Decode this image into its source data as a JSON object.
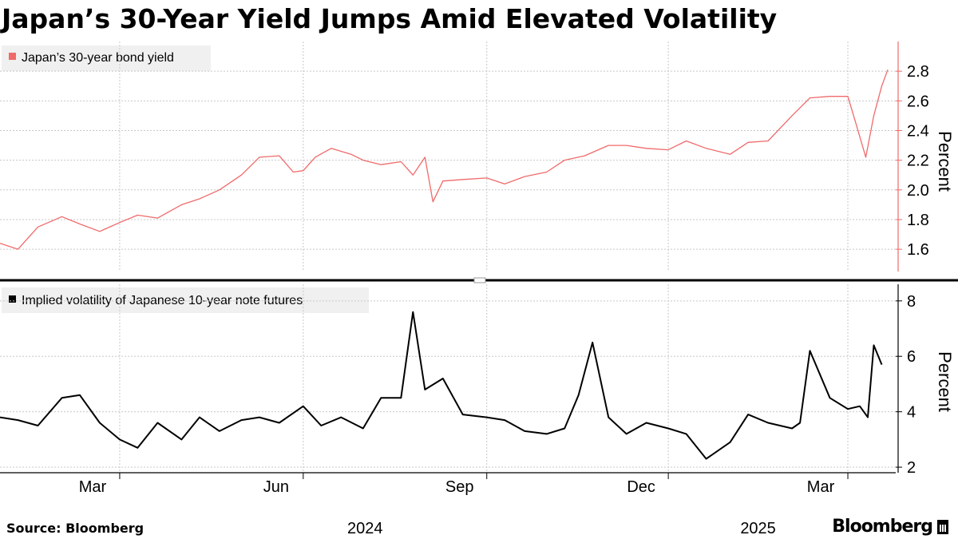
{
  "title": "Japan’s 30-Year Yield Jumps Amid Elevated Volatility",
  "source": "Source: Bloomberg",
  "brand": "Bloomberg",
  "colors": {
    "yield": "#f06a6a",
    "vol": "#000000",
    "grid": "#c8c8c8"
  },
  "chart_data": [
    {
      "type": "line",
      "legend": "Japan’s 30-year bond yield",
      "ylabel": "Percent",
      "ylim": [
        1.45,
        3.0
      ],
      "yticks": [
        "1.6",
        "1.8",
        "2.0",
        "2.2",
        "2.4",
        "2.6",
        "2.8"
      ],
      "x_range": [
        "2024-01-01",
        "2025-03-25"
      ],
      "x": [
        "2024-01-01",
        "2024-01-10",
        "2024-01-20",
        "2024-02-01",
        "2024-02-10",
        "2024-02-20",
        "2024-03-01",
        "2024-03-10",
        "2024-03-20",
        "2024-04-01",
        "2024-04-10",
        "2024-04-20",
        "2024-05-01",
        "2024-05-10",
        "2024-05-20",
        "2024-05-27",
        "2024-06-01",
        "2024-06-07",
        "2024-06-15",
        "2024-06-25",
        "2024-07-01",
        "2024-07-10",
        "2024-07-20",
        "2024-07-26",
        "2024-08-01",
        "2024-08-05",
        "2024-08-10",
        "2024-08-20",
        "2024-09-01",
        "2024-09-10",
        "2024-09-20",
        "2024-10-01",
        "2024-10-10",
        "2024-10-20",
        "2024-11-01",
        "2024-11-10",
        "2024-11-20",
        "2024-12-01",
        "2024-12-10",
        "2024-12-20",
        "2025-01-01",
        "2025-01-10",
        "2025-01-20",
        "2025-02-01",
        "2025-02-10",
        "2025-02-20",
        "2025-03-01",
        "2025-03-05",
        "2025-03-10",
        "2025-03-14",
        "2025-03-18",
        "2025-03-21"
      ],
      "values": [
        1.64,
        1.6,
        1.75,
        1.82,
        1.77,
        1.72,
        1.78,
        1.83,
        1.81,
        1.9,
        1.94,
        2.0,
        2.1,
        2.22,
        2.23,
        2.12,
        2.13,
        2.22,
        2.28,
        2.24,
        2.2,
        2.17,
        2.19,
        2.1,
        2.22,
        1.92,
        2.06,
        2.07,
        2.08,
        2.04,
        2.09,
        2.12,
        2.2,
        2.23,
        2.3,
        2.3,
        2.28,
        2.27,
        2.33,
        2.28,
        2.24,
        2.32,
        2.33,
        2.5,
        2.62,
        2.63,
        2.63,
        2.45,
        2.22,
        2.5,
        2.7,
        2.81
      ]
    },
    {
      "type": "line",
      "legend": "Implied volatility of Japanese 10-year note futures",
      "ylabel": "Percent",
      "ylim": [
        1.8,
        8.6
      ],
      "yticks": [
        "2",
        "4",
        "6",
        "8"
      ],
      "x_range": [
        "2024-01-01",
        "2025-03-25"
      ],
      "x": [
        "2024-01-01",
        "2024-01-10",
        "2024-01-20",
        "2024-02-01",
        "2024-02-10",
        "2024-02-20",
        "2024-03-01",
        "2024-03-10",
        "2024-03-20",
        "2024-04-01",
        "2024-04-10",
        "2024-04-20",
        "2024-05-01",
        "2024-05-10",
        "2024-05-20",
        "2024-06-01",
        "2024-06-10",
        "2024-06-20",
        "2024-07-01",
        "2024-07-10",
        "2024-07-20",
        "2024-07-26",
        "2024-08-01",
        "2024-08-10",
        "2024-08-20",
        "2024-09-01",
        "2024-09-10",
        "2024-09-20",
        "2024-10-01",
        "2024-10-10",
        "2024-10-17",
        "2024-10-24",
        "2024-11-01",
        "2024-11-10",
        "2024-11-20",
        "2024-12-01",
        "2024-12-10",
        "2024-12-20",
        "2025-01-01",
        "2025-01-10",
        "2025-01-20",
        "2025-02-01",
        "2025-02-05",
        "2025-02-10",
        "2025-02-20",
        "2025-03-01",
        "2025-03-07",
        "2025-03-11",
        "2025-03-14",
        "2025-03-18"
      ],
      "values": [
        3.8,
        3.7,
        3.5,
        4.5,
        4.6,
        3.6,
        3.0,
        2.7,
        3.6,
        3.0,
        3.8,
        3.3,
        3.7,
        3.8,
        3.6,
        4.2,
        3.5,
        3.8,
        3.4,
        4.5,
        4.5,
        7.6,
        4.8,
        5.2,
        3.9,
        3.8,
        3.7,
        3.3,
        3.2,
        3.4,
        4.6,
        6.5,
        3.8,
        3.2,
        3.6,
        3.4,
        3.2,
        2.3,
        2.9,
        3.9,
        3.6,
        3.4,
        3.6,
        6.2,
        4.5,
        4.1,
        4.2,
        3.8,
        6.4,
        5.7
      ]
    }
  ],
  "x_axis": {
    "ticks": [
      {
        "label": "Mar",
        "date": "2024-03-01"
      },
      {
        "label": "Jun",
        "date": "2024-06-01"
      },
      {
        "label": "Sep",
        "date": "2024-09-01"
      },
      {
        "label": "Dec",
        "date": "2024-12-01"
      },
      {
        "label": "Mar",
        "date": "2025-03-01"
      }
    ],
    "years": [
      {
        "label": "2024",
        "date": "2024-07-02"
      },
      {
        "label": "2025",
        "date": "2025-01-15"
      }
    ]
  }
}
